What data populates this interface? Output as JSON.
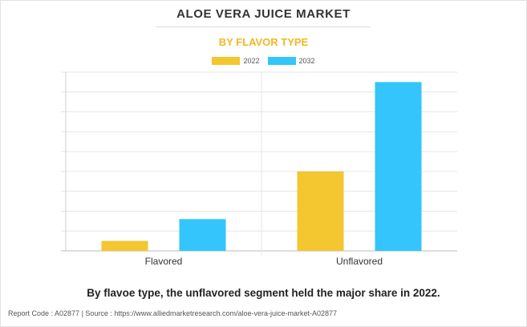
{
  "header": {
    "title": "ALOE VERA JUICE MARKET",
    "subtitle": "BY FLAVOR TYPE"
  },
  "legend": {
    "items": [
      {
        "label": "2022",
        "color": "#f4c62f"
      },
      {
        "label": "2032",
        "color": "#33c5fb"
      }
    ]
  },
  "chart_data": {
    "type": "bar",
    "categories": [
      "Flavored",
      "Unflavored"
    ],
    "series": [
      {
        "name": "2022",
        "values": [
          0.5,
          4.0
        ],
        "color": "#f4c62f"
      },
      {
        "name": "2032",
        "values": [
          1.6,
          8.5
        ],
        "color": "#33c5fb"
      }
    ],
    "ylim": [
      0,
      9
    ],
    "grid": true,
    "legend_position": "top-center"
  },
  "caption": "By flavoe type, the unflavored segment held the major share in 2022.",
  "footer": {
    "text": "Report Code : A02877  |  Source : https://www.alliedmarketresearch.com/aloe-vera-juice-market-A02877"
  }
}
